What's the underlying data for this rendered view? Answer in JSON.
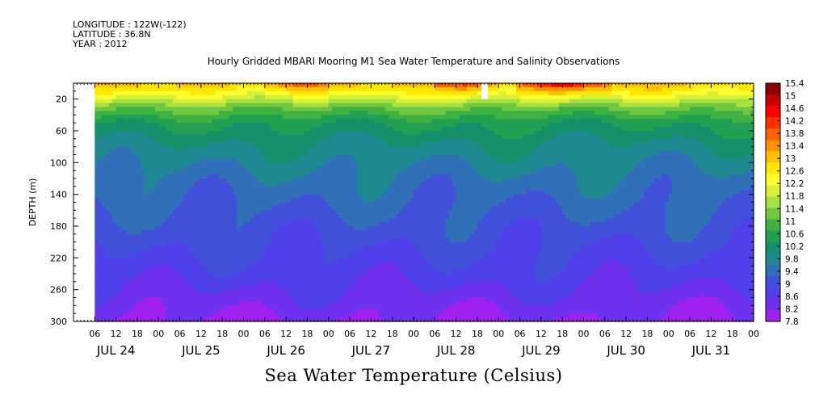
{
  "header": {
    "longitude": "LONGITUDE : 122W(-122)",
    "latitude": "LATITUDE : 36.8N",
    "year": "YEAR : 2012"
  },
  "chart_data": {
    "type": "heatmap",
    "title": "Hourly Gridded MBARI Mooring M1 Sea Water Temperature and Salinity Observations",
    "xlabel": "Sea Water Temperature (Celsius)",
    "ylabel": "DEPTH (m)",
    "ylim": [
      0,
      300
    ],
    "y_inverted": true,
    "y_ticks": [
      20,
      60,
      100,
      140,
      180,
      220,
      260,
      300
    ],
    "x_range_hours": [
      0,
      192
    ],
    "x_hour_labels": [
      "06",
      "12",
      "18",
      "00",
      "06",
      "12",
      "18",
      "00",
      "06",
      "12",
      "18",
      "00",
      "06",
      "12",
      "18",
      "00",
      "06",
      "12",
      "18",
      "00",
      "06",
      "12",
      "18",
      "00",
      "06",
      "12",
      "18",
      "00",
      "06",
      "12",
      "18",
      "00"
    ],
    "x_day_labels": [
      "JUL 24",
      "JUL 25",
      "JUL 26",
      "JUL 27",
      "JUL 28",
      "JUL 29",
      "JUL 30",
      "JUL 31"
    ],
    "colorbar": {
      "min": 7.8,
      "max": 15.4,
      "labels": [
        "15.4",
        "15",
        "14.6",
        "14.2",
        "13.8",
        "13.4",
        "13",
        "12.6",
        "12.2",
        "11.8",
        "11.4",
        "11",
        "10.6",
        "10.2",
        "9.8",
        "9.4",
        "9",
        "8.6",
        "8.2",
        "7.8"
      ],
      "colors": [
        "#8b0000",
        "#c40000",
        "#ff0000",
        "#ff3000",
        "#ff6000",
        "#ff9000",
        "#ffc000",
        "#ffe800",
        "#ffff30",
        "#d8f038",
        "#a8e040",
        "#70c840",
        "#40b040",
        "#20a050",
        "#14906a",
        "#208890",
        "#3070b8",
        "#4050d8",
        "#5040ea",
        "#7030f0",
        "#a020f0"
      ]
    },
    "depth_profile": [
      {
        "depth": 0,
        "temp": 13.0
      },
      {
        "depth": 15,
        "temp": 12.2
      },
      {
        "depth": 30,
        "temp": 11.2
      },
      {
        "depth": 50,
        "temp": 10.4
      },
      {
        "depth": 80,
        "temp": 9.9
      },
      {
        "depth": 120,
        "temp": 9.5
      },
      {
        "depth": 180,
        "temp": 9.1
      },
      {
        "depth": 240,
        "temp": 8.7
      },
      {
        "depth": 300,
        "temp": 8.1
      }
    ],
    "warm_surface_events_hours": [
      {
        "start": 54,
        "end": 72,
        "temp": 14.2
      },
      {
        "start": 102,
        "end": 120,
        "temp": 14.6
      },
      {
        "start": 125,
        "end": 152,
        "temp": 15.0
      }
    ],
    "missing_data": [
      {
        "start_hour": 0,
        "end_hour": 6,
        "depth_top": 0,
        "depth_bottom": 300
      },
      {
        "start_hour": 115,
        "end_hour": 117,
        "depth_top": 0,
        "depth_bottom": 20
      }
    ]
  }
}
